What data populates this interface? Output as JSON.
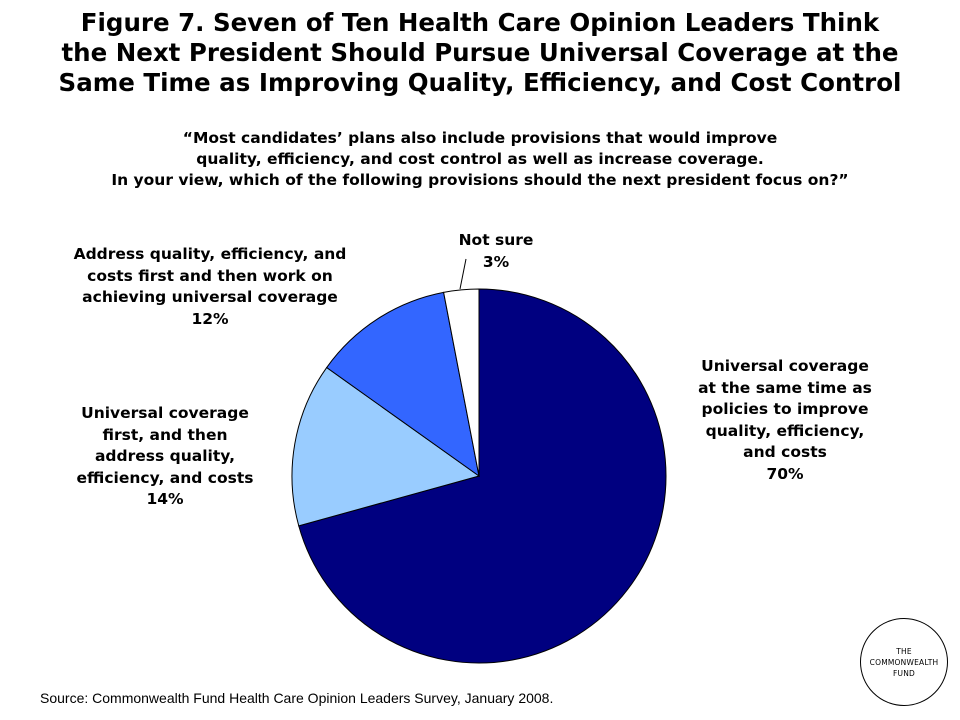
{
  "title_lines": [
    "Figure 7. Seven of Ten Health Care Opinion Leaders Think",
    "the Next President Should Pursue Universal Coverage at the",
    "Same Time as Improving Quality, Efficiency, and Cost Control"
  ],
  "question_lines": [
    "“Most candidates’ plans also include provisions that would improve",
    "quality, efficiency, and cost control as well as increase coverage.",
    "In your view, which of the following provisions should the next president focus on?”"
  ],
  "chart_data": {
    "type": "pie",
    "start": "top, clockwise",
    "slices": [
      {
        "label_lines": [
          "Universal coverage",
          "at the same time as",
          "policies to improve",
          "quality, efficiency,",
          "and costs"
        ],
        "value": 70,
        "value_label": "70%",
        "color": "#000080"
      },
      {
        "label_lines": [
          "Universal coverage",
          "first, and then",
          "address quality,",
          "efficiency, and costs"
        ],
        "value": 14,
        "value_label": "14%",
        "color": "#99CCFF"
      },
      {
        "label_lines": [
          "Address quality, efficiency, and",
          "costs first and then work on",
          "achieving universal coverage"
        ],
        "value": 12,
        "value_label": "12%",
        "color": "#3366FF"
      },
      {
        "label_lines": [
          "Not sure"
        ],
        "value": 3,
        "value_label": "3%",
        "color": "#FFFFFF"
      }
    ]
  },
  "source": "Source: Commonwealth Fund Health Care Opinion Leaders Survey, January 2008.",
  "logo": {
    "lines": [
      "THE",
      "COMMONWEALTH",
      "FUND"
    ]
  }
}
